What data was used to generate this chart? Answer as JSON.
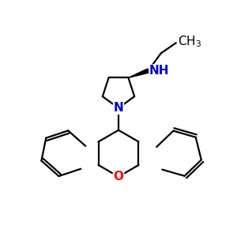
{
  "bg_color": "#ffffff",
  "bond_color": "#000000",
  "n_color": "#0000cd",
  "o_color": "#ff0000",
  "figsize": [
    3.0,
    3.0
  ],
  "dpi": 100,
  "lw": 1.6,
  "xlim": [
    0,
    10
  ],
  "ylim": [
    0,
    10
  ]
}
